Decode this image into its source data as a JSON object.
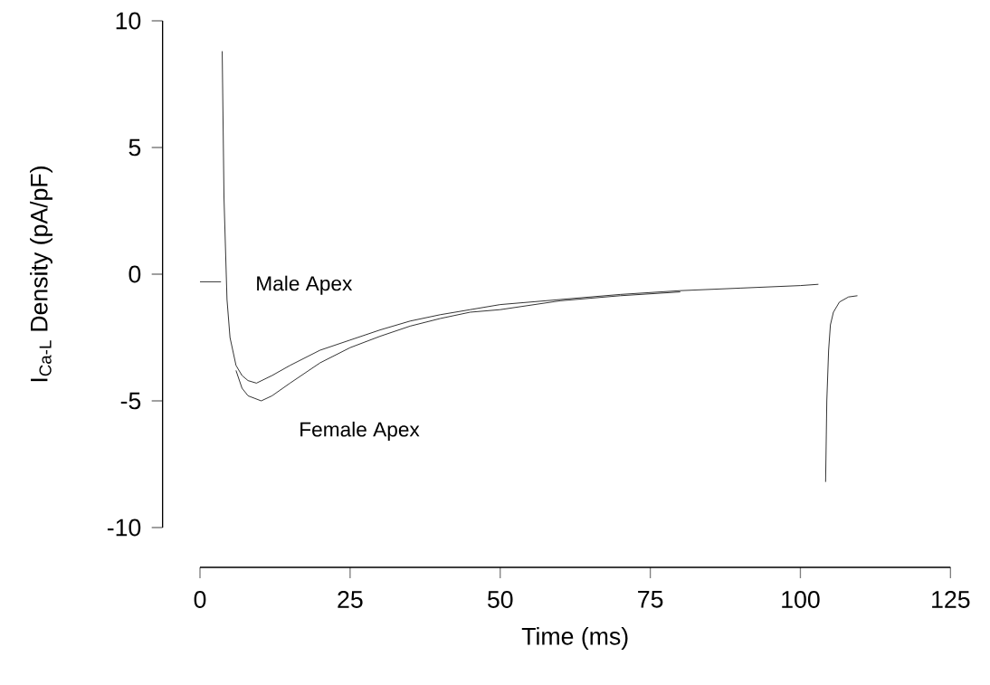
{
  "chart_data": {
    "type": "line",
    "xlabel": "Time (ms)",
    "ylabel": "I$_{Ca-L}$ Density (pA/pF)",
    "xlim": [
      0,
      125
    ],
    "ylim": [
      -10,
      10
    ],
    "xticks": [
      0,
      25,
      50,
      75,
      100,
      125
    ],
    "yticks": [
      -10,
      -5,
      0,
      5,
      10
    ],
    "grid": false,
    "legend": false,
    "series": [
      {
        "name": "Male Apex",
        "color": "#000000",
        "x": [
          0,
          1,
          2,
          3,
          3.5,
          3.6,
          3.7,
          4.0,
          4.5,
          5,
          6,
          7,
          8,
          9.4,
          12,
          15,
          20,
          25,
          30,
          35,
          40,
          45,
          50,
          60,
          70,
          80,
          90,
          100,
          103,
          103.5,
          104.2,
          104.4,
          104.7,
          105,
          105.5,
          106.5,
          108,
          109.5
        ],
        "values": [
          -0.3,
          -0.3,
          -0.3,
          -0.3,
          -0.3,
          null,
          8.8,
          3,
          -1,
          -2.5,
          -3.6,
          -4.0,
          -4.2,
          -4.3,
          -4.0,
          -3.6,
          -3.0,
          -2.6,
          -2.2,
          -1.85,
          -1.6,
          -1.4,
          -1.2,
          -1.0,
          -0.8,
          -0.65,
          -0.55,
          -0.45,
          -0.4,
          null,
          -8.2,
          -5,
          -3,
          -2,
          -1.5,
          -1.1,
          -0.9,
          -0.85
        ]
      },
      {
        "name": "Female Apex",
        "color": "#000000",
        "x": [
          6,
          7,
          8,
          10.2,
          12,
          15,
          20,
          25,
          30,
          35,
          40,
          45,
          50,
          60,
          70,
          80
        ],
        "values": [
          -3.8,
          -4.5,
          -4.8,
          -5.0,
          -4.8,
          -4.3,
          -3.5,
          -2.9,
          -2.45,
          -2.05,
          -1.75,
          -1.5,
          -1.4,
          -1.05,
          -0.85,
          -0.7
        ]
      }
    ]
  }
}
